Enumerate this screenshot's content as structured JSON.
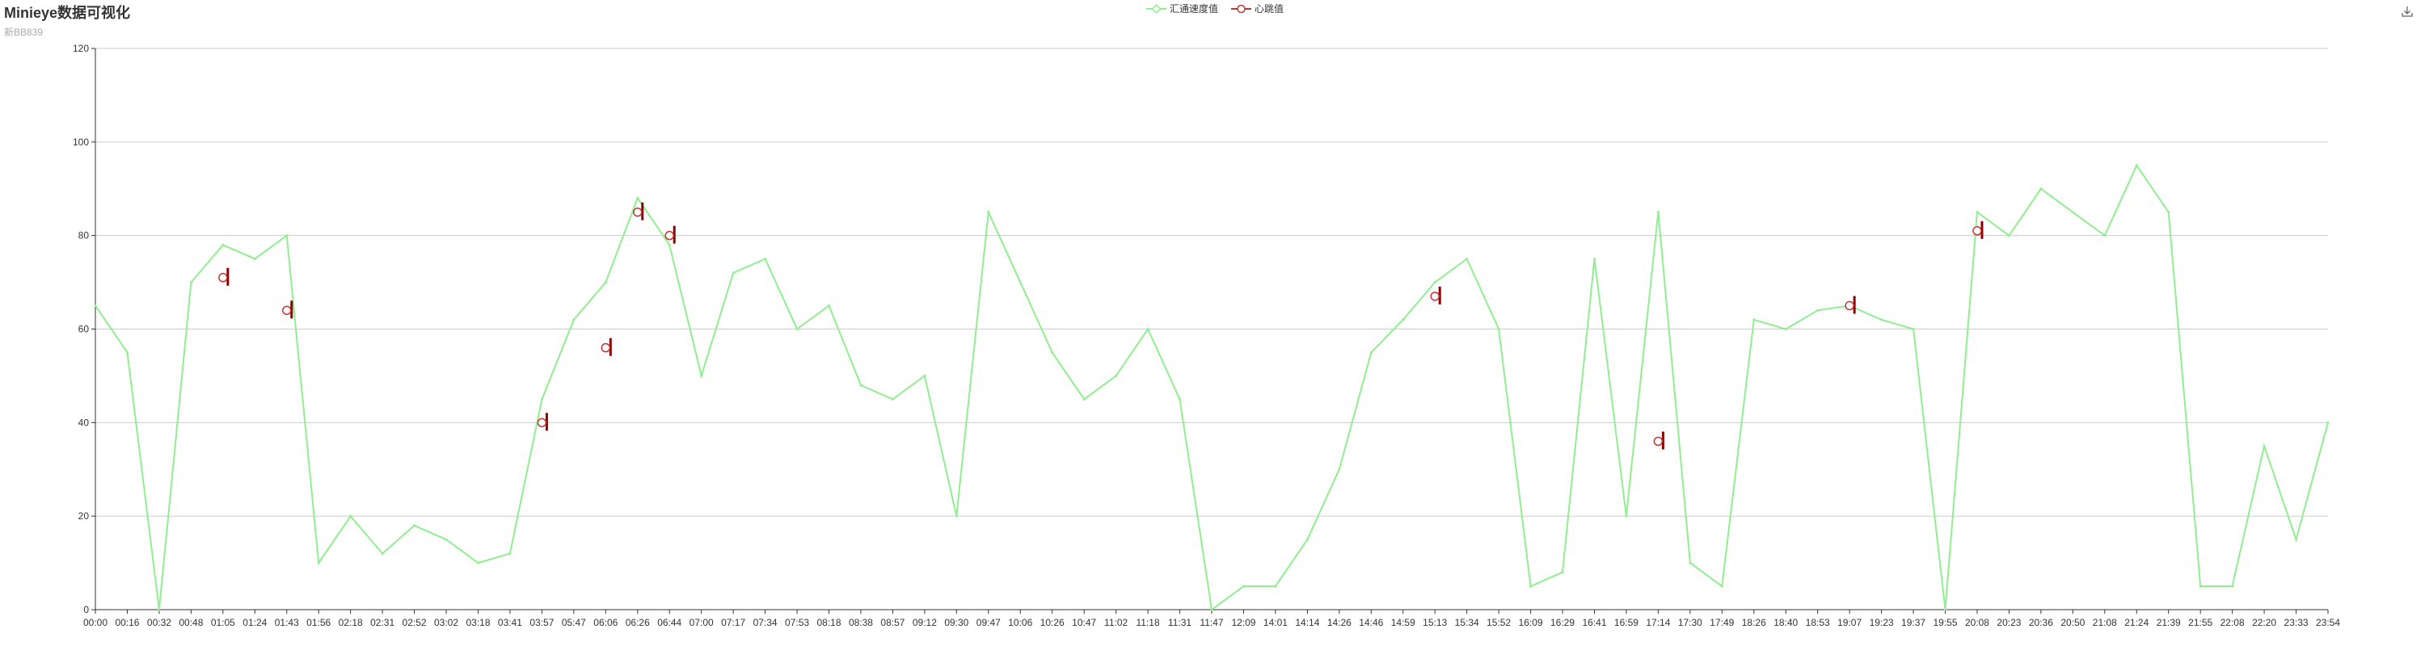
{
  "header": {
    "title": "Minieye数据可视化",
    "subtitle": "新BB839"
  },
  "toolbar": {
    "save_icon": "download-icon"
  },
  "colors": {
    "speed": "#90ee90",
    "heartbeat_line": "#8b0000",
    "heartbeat_marker": "#c23531",
    "axis": "#333333",
    "grid": "#cccccc"
  },
  "legend": [
    {
      "name": "汇通速度值",
      "icon": "diamond-outline",
      "color": "#90ee90"
    },
    {
      "name": "心跳值",
      "icon": "circle-outline",
      "color": "#c23531"
    }
  ],
  "chart_data": {
    "type": "line",
    "title": "Minieye数据可视化",
    "subtitle": "新BB839",
    "ylim": [
      0,
      120
    ],
    "y_ticks": [
      "0",
      "20",
      "40",
      "60",
      "80",
      "100",
      "120"
    ],
    "grid": "horizontal",
    "legend_position": "top-center",
    "x_tick_labels": [
      "00:00",
      "00:16",
      "00:32",
      "00:48",
      "01:05",
      "01:24",
      "01:43",
      "01:56",
      "02:18",
      "02:31",
      "02:52",
      "03:02",
      "03:18",
      "03:41",
      "03:57",
      "05:47",
      "06:06",
      "06:26",
      "06:44",
      "07:00",
      "07:17",
      "07:34",
      "07:53",
      "08:18",
      "08:38",
      "08:57",
      "09:12",
      "09:30",
      "09:47",
      "10:06",
      "10:26",
      "10:47",
      "11:02",
      "11:18",
      "11:31",
      "11:47",
      "12:09",
      "14:01",
      "14:14",
      "14:26",
      "14:46",
      "14:59",
      "15:13",
      "15:34",
      "15:52",
      "16:09",
      "16:29",
      "16:41",
      "16:59",
      "17:14",
      "17:30",
      "17:49",
      "18:26",
      "18:40",
      "18:53",
      "19:07",
      "19:23",
      "19:37",
      "19:55",
      "20:08",
      "20:23",
      "20:36",
      "20:50",
      "21:08",
      "21:24",
      "21:39",
      "21:55",
      "22:08",
      "22:20",
      "23:33",
      "23:54"
    ],
    "series": [
      {
        "name": "汇通速度值",
        "kind": "line",
        "x": [
          "00:00",
          "00:16",
          "00:32",
          "00:48",
          "01:05",
          "01:24",
          "01:43",
          "01:56",
          "02:18",
          "02:31",
          "02:52",
          "03:02",
          "03:18",
          "03:41",
          "03:57",
          "05:47",
          "06:06",
          "06:26",
          "06:44",
          "07:00",
          "07:17",
          "07:34",
          "07:53",
          "08:18",
          "08:38",
          "08:57",
          "09:12",
          "09:30",
          "09:47",
          "10:06",
          "10:26",
          "10:47",
          "11:02",
          "11:18",
          "11:31",
          "11:47",
          "12:09",
          "14:01",
          "14:14",
          "14:26",
          "14:46",
          "14:59",
          "15:13",
          "15:34",
          "15:52",
          "16:09",
          "16:29",
          "16:41",
          "16:59",
          "17:14",
          "17:30",
          "17:49",
          "18:26",
          "18:40",
          "18:53",
          "19:07",
          "19:23",
          "19:37",
          "19:55",
          "20:08",
          "20:23",
          "20:36",
          "20:50",
          "21:08",
          "21:24",
          "21:39",
          "21:55",
          "22:08",
          "22:20",
          "23:33",
          "23:54"
        ],
        "values": [
          65,
          55,
          0,
          70,
          78,
          75,
          80,
          10,
          20,
          12,
          18,
          15,
          10,
          12,
          45,
          62,
          70,
          88,
          78,
          50,
          72,
          75,
          60,
          65,
          48,
          45,
          50,
          20,
          85,
          70,
          55,
          45,
          50,
          60,
          45,
          0,
          5,
          5,
          15,
          30,
          55,
          62,
          70,
          75,
          60,
          5,
          8,
          75,
          20,
          85,
          10,
          5,
          62,
          60,
          64,
          65,
          62,
          60,
          0,
          85,
          80,
          90,
          85,
          80,
          95,
          85,
          5,
          5,
          35,
          15,
          40
        ]
      },
      {
        "name": "心跳值",
        "kind": "scatter",
        "points": [
          {
            "x": "01:05",
            "y": 71
          },
          {
            "x": "01:43",
            "y": 64
          },
          {
            "x": "03:57",
            "y": 40
          },
          {
            "x": "06:06",
            "y": 56
          },
          {
            "x": "06:26",
            "y": 85
          },
          {
            "x": "06:44",
            "y": 80
          },
          {
            "x": "15:13",
            "y": 67
          },
          {
            "x": "17:14",
            "y": 36
          },
          {
            "x": "19:07",
            "y": 65
          },
          {
            "x": "20:08",
            "y": 81
          }
        ]
      }
    ]
  }
}
